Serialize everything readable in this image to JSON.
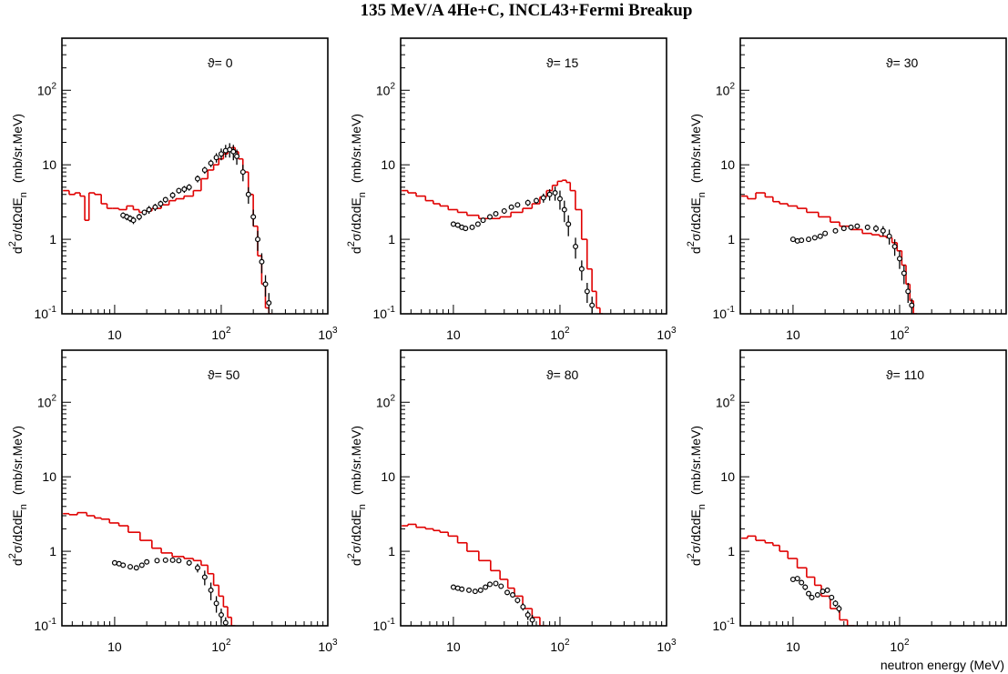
{
  "title": "135 MeV/A 4He+C, INCL43+Fermi Breakup",
  "chart_data": [
    {
      "type": "line",
      "annotation": "ϑ= 0",
      "ylabel": [
        "d",
        "2",
        "σ/dΩdE",
        "n",
        "(mb/sr.MeV)"
      ],
      "xlim": [
        3.2,
        1000
      ],
      "ylim": [
        0.1,
        500
      ],
      "log_x": true,
      "log_y": true,
      "xticks": [
        10,
        {
          "value": 100,
          "label": "10",
          "sup": "2"
        },
        {
          "value": 1000,
          "label": "10",
          "sup": "3"
        }
      ],
      "yticks": [
        {
          "value": 0.1,
          "label": "10",
          "sup": "-1"
        },
        1,
        10,
        {
          "value": 100,
          "label": "10",
          "sup": "2"
        }
      ],
      "series": [
        {
          "style": "step",
          "color": "#e00000",
          "x": [
            3.5,
            4,
            4.5,
            5,
            5.5,
            6,
            7,
            8,
            9,
            10,
            12,
            14,
            16,
            18,
            20,
            25,
            30,
            35,
            40,
            50,
            60,
            70,
            80,
            90,
            100,
            110,
            120,
            130,
            140,
            150,
            170,
            190,
            210,
            230,
            250,
            270,
            290
          ],
          "values": [
            4.5,
            4.0,
            4.2,
            3.8,
            1.8,
            4.2,
            4.0,
            3.0,
            2.6,
            2.6,
            2.5,
            2.8,
            2.5,
            2.3,
            2.4,
            2.6,
            2.9,
            3.3,
            3.5,
            3.8,
            4.5,
            6.5,
            8.5,
            10,
            12,
            14,
            16,
            17,
            15,
            12,
            8,
            4,
            1.5,
            0.6,
            0.25,
            0.12,
            0.1
          ]
        },
        {
          "style": "markers",
          "color": "#000000",
          "x": [
            12,
            13,
            14,
            15,
            17,
            19,
            21,
            24,
            27,
            30,
            35,
            40,
            45,
            50,
            60,
            70,
            80,
            90,
            100,
            110,
            120,
            130,
            140,
            160,
            180,
            200,
            220,
            240,
            260,
            280
          ],
          "values": [
            2.1,
            2.0,
            1.9,
            1.8,
            2.0,
            2.3,
            2.5,
            2.7,
            3.0,
            3.4,
            3.9,
            4.5,
            4.7,
            5.0,
            6.5,
            8.5,
            10.5,
            12.5,
            14,
            15.5,
            16,
            15,
            13,
            8,
            4,
            2,
            1,
            0.5,
            0.25,
            0.14
          ],
          "errors": [
            0.2,
            0.2,
            0.2,
            0.2,
            0.2,
            0.2,
            0.3,
            0.3,
            0.3,
            0.3,
            0.4,
            0.4,
            0.5,
            0.5,
            0.7,
            0.9,
            1.2,
            1.8,
            2.5,
            3,
            3.5,
            3.5,
            3,
            2,
            1,
            0.5,
            0.3,
            0.15,
            0.08,
            0.05
          ]
        }
      ]
    },
    {
      "type": "line",
      "annotation": "ϑ= 15",
      "ylabel": [
        "d",
        "2",
        "σ/dΩdE",
        "n",
        "(mb/sr.MeV)"
      ],
      "xlim": [
        3.2,
        1000
      ],
      "ylim": [
        0.1,
        500
      ],
      "log_x": true,
      "log_y": true,
      "xticks": [
        10,
        {
          "value": 100,
          "label": "10",
          "sup": "2"
        },
        {
          "value": 1000,
          "label": "10",
          "sup": "3"
        }
      ],
      "yticks": [
        {
          "value": 0.1,
          "label": "10",
          "sup": "-1"
        },
        1,
        10,
        {
          "value": 100,
          "label": "10",
          "sup": "2"
        }
      ],
      "series": [
        {
          "style": "step",
          "color": "#e00000",
          "x": [
            3.5,
            4,
            5,
            6,
            7,
            8,
            10,
            12,
            15,
            20,
            25,
            30,
            40,
            50,
            60,
            70,
            80,
            90,
            100,
            110,
            120,
            130,
            150,
            170,
            190,
            210,
            230,
            245
          ],
          "values": [
            4.5,
            4.2,
            3.8,
            3.3,
            3.0,
            2.8,
            2.5,
            2.3,
            2.1,
            1.9,
            1.9,
            2.0,
            2.3,
            2.6,
            3.0,
            3.7,
            4.5,
            5.3,
            6.0,
            6.2,
            5.8,
            4.5,
            2.5,
            1.0,
            0.4,
            0.2,
            0.12,
            0.1
          ]
        },
        {
          "style": "markers",
          "color": "#000000",
          "x": [
            10,
            11,
            12,
            13,
            15,
            17,
            19,
            22,
            25,
            30,
            35,
            40,
            50,
            60,
            70,
            80,
            90,
            100,
            110,
            120,
            140,
            160,
            180,
            200
          ],
          "values": [
            1.6,
            1.55,
            1.45,
            1.4,
            1.45,
            1.6,
            1.8,
            2.0,
            2.2,
            2.4,
            2.7,
            2.9,
            3.1,
            3.3,
            3.6,
            4.0,
            4.2,
            3.5,
            2.5,
            1.6,
            0.8,
            0.4,
            0.2,
            0.13
          ],
          "errors": [
            0.1,
            0.1,
            0.1,
            0.1,
            0.1,
            0.1,
            0.1,
            0.15,
            0.15,
            0.2,
            0.2,
            0.2,
            0.3,
            0.3,
            0.5,
            0.7,
            0.9,
            1.0,
            0.8,
            0.5,
            0.25,
            0.12,
            0.06,
            0.04
          ]
        }
      ]
    },
    {
      "type": "line",
      "annotation": "ϑ= 30",
      "ylabel": [
        "d",
        "2",
        "σ/dΩdE",
        "n",
        "(mb/sr.MeV)"
      ],
      "xlim": [
        3.2,
        1000
      ],
      "ylim": [
        0.1,
        500
      ],
      "log_x": true,
      "log_y": true,
      "xticks": [
        10,
        {
          "value": 100,
          "label": "10",
          "sup": "2"
        }
      ],
      "yticks": [
        {
          "value": 0.1,
          "label": "10",
          "sup": "-1"
        },
        1,
        10,
        {
          "value": 100,
          "label": "10",
          "sup": "2"
        }
      ],
      "series": [
        {
          "style": "step",
          "color": "#e00000",
          "x": [
            3.5,
            4,
            5,
            6,
            7,
            8,
            10,
            12,
            15,
            20,
            25,
            30,
            40,
            50,
            60,
            70,
            80,
            90,
            100,
            110,
            120,
            130,
            140
          ],
          "values": [
            3.8,
            3.5,
            4.2,
            3.7,
            3.2,
            3.0,
            2.8,
            2.6,
            2.3,
            2.0,
            1.7,
            1.5,
            1.35,
            1.2,
            1.15,
            1.1,
            1.05,
            0.9,
            0.7,
            0.45,
            0.25,
            0.15,
            0.1
          ]
        },
        {
          "style": "markers",
          "color": "#000000",
          "x": [
            10,
            11,
            12,
            14,
            16,
            18,
            20,
            25,
            30,
            35,
            40,
            50,
            60,
            70,
            80,
            90,
            100,
            110,
            120,
            130
          ],
          "values": [
            1.0,
            0.95,
            0.97,
            1.0,
            1.05,
            1.1,
            1.2,
            1.3,
            1.4,
            1.45,
            1.5,
            1.45,
            1.4,
            1.3,
            1.1,
            0.8,
            0.55,
            0.35,
            0.2,
            0.13
          ],
          "errors": [
            0.05,
            0.05,
            0.05,
            0.05,
            0.05,
            0.06,
            0.06,
            0.07,
            0.08,
            0.1,
            0.1,
            0.12,
            0.15,
            0.2,
            0.25,
            0.2,
            0.15,
            0.1,
            0.06,
            0.03
          ]
        }
      ]
    },
    {
      "type": "line",
      "annotation": "ϑ= 50",
      "ylabel": [
        "d",
        "2",
        "σ/dΩdE",
        "n",
        "(mb/sr.MeV)"
      ],
      "xlim": [
        3.2,
        1000
      ],
      "ylim": [
        0.1,
        500
      ],
      "log_x": true,
      "log_y": true,
      "xticks": [
        10,
        {
          "value": 100,
          "label": "10",
          "sup": "2"
        },
        {
          "value": 1000,
          "label": "10",
          "sup": "3"
        }
      ],
      "yticks": [
        {
          "value": 0.1,
          "label": "10",
          "sup": "-1"
        },
        1,
        10,
        {
          "value": 100,
          "label": "10",
          "sup": "2"
        }
      ],
      "series": [
        {
          "style": "step",
          "color": "#e00000",
          "x": [
            3.5,
            4,
            5,
            6,
            7,
            8,
            10,
            12,
            15,
            20,
            25,
            30,
            40,
            50,
            60,
            70,
            80,
            90,
            100,
            110,
            120,
            130
          ],
          "values": [
            3.2,
            3.1,
            3.3,
            3.0,
            2.8,
            2.7,
            2.4,
            2.2,
            1.8,
            1.4,
            1.1,
            0.95,
            0.85,
            0.8,
            0.75,
            0.65,
            0.5,
            0.35,
            0.25,
            0.18,
            0.13,
            0.1
          ]
        },
        {
          "style": "markers",
          "color": "#000000",
          "x": [
            10,
            11,
            12,
            14,
            16,
            18,
            20,
            25,
            30,
            35,
            40,
            50,
            60,
            70,
            80,
            90,
            100,
            110
          ],
          "values": [
            0.7,
            0.68,
            0.65,
            0.62,
            0.6,
            0.65,
            0.72,
            0.75,
            0.76,
            0.76,
            0.75,
            0.7,
            0.6,
            0.45,
            0.3,
            0.2,
            0.14,
            0.11
          ],
          "errors": [
            0.03,
            0.03,
            0.03,
            0.03,
            0.03,
            0.03,
            0.04,
            0.04,
            0.04,
            0.04,
            0.05,
            0.06,
            0.08,
            0.1,
            0.08,
            0.05,
            0.03,
            0.02
          ]
        }
      ]
    },
    {
      "type": "line",
      "annotation": "ϑ= 80",
      "ylabel": [
        "d",
        "2",
        "σ/dΩdE",
        "n",
        "(mb/sr.MeV)"
      ],
      "xlim": [
        3.2,
        1000
      ],
      "ylim": [
        0.1,
        500
      ],
      "log_x": true,
      "log_y": true,
      "xticks": [
        10,
        {
          "value": 100,
          "label": "10",
          "sup": "2"
        },
        {
          "value": 1000,
          "label": "10",
          "sup": "3"
        }
      ],
      "yticks": [
        {
          "value": 0.1,
          "label": "10",
          "sup": "-1"
        },
        1,
        10,
        {
          "value": 100,
          "label": "10",
          "sup": "2"
        }
      ],
      "series": [
        {
          "style": "step",
          "color": "#e00000",
          "x": [
            3.5,
            4,
            5,
            6,
            7,
            8,
            10,
            12,
            15,
            20,
            25,
            30,
            35,
            40,
            50,
            60,
            70
          ],
          "values": [
            2.2,
            2.3,
            2.1,
            2.0,
            1.9,
            1.8,
            1.6,
            1.3,
            1.0,
            0.75,
            0.55,
            0.42,
            0.32,
            0.25,
            0.17,
            0.13,
            0.1
          ]
        },
        {
          "style": "markers",
          "color": "#000000",
          "x": [
            10,
            11,
            12,
            14,
            16,
            18,
            20,
            22,
            25,
            28,
            32,
            36,
            40,
            45,
            50,
            55
          ],
          "values": [
            0.33,
            0.32,
            0.31,
            0.3,
            0.29,
            0.3,
            0.33,
            0.36,
            0.37,
            0.34,
            0.28,
            0.26,
            0.22,
            0.18,
            0.14,
            0.12
          ],
          "errors": [
            0.02,
            0.02,
            0.02,
            0.02,
            0.02,
            0.02,
            0.02,
            0.02,
            0.02,
            0.02,
            0.02,
            0.02,
            0.02,
            0.02,
            0.02,
            0.02
          ]
        }
      ]
    },
    {
      "type": "line",
      "annotation": "ϑ= 110",
      "xlabel": "neutron energy (MeV)",
      "ylabel": [
        "d",
        "2",
        "σ/dΩdE",
        "n",
        "(mb/sr.MeV)"
      ],
      "xlim": [
        3.2,
        1000
      ],
      "ylim": [
        0.1,
        500
      ],
      "log_x": true,
      "log_y": true,
      "xticks": [
        10,
        {
          "value": 100,
          "label": "10",
          "sup": "2"
        }
      ],
      "yticks": [
        {
          "value": 0.1,
          "label": "10",
          "sup": "-1"
        },
        1,
        10,
        {
          "value": 100,
          "label": "10",
          "sup": "2"
        }
      ],
      "series": [
        {
          "style": "step",
          "color": "#e00000",
          "x": [
            3.5,
            4,
            5,
            6,
            7,
            8,
            10,
            12,
            15,
            17,
            20,
            25,
            30,
            35
          ],
          "values": [
            1.5,
            1.6,
            1.4,
            1.3,
            1.2,
            1.0,
            0.8,
            0.6,
            0.45,
            0.35,
            0.25,
            0.17,
            0.12,
            0.1
          ]
        },
        {
          "style": "markers",
          "color": "#000000",
          "x": [
            10,
            11,
            12,
            13,
            14,
            15,
            17,
            19,
            21,
            23,
            25,
            27
          ],
          "values": [
            0.42,
            0.43,
            0.38,
            0.33,
            0.27,
            0.24,
            0.26,
            0.29,
            0.3,
            0.24,
            0.2,
            0.17
          ],
          "errors": [
            0.03,
            0.03,
            0.03,
            0.03,
            0.02,
            0.02,
            0.02,
            0.02,
            0.02,
            0.02,
            0.02,
            0.02
          ]
        }
      ]
    }
  ]
}
